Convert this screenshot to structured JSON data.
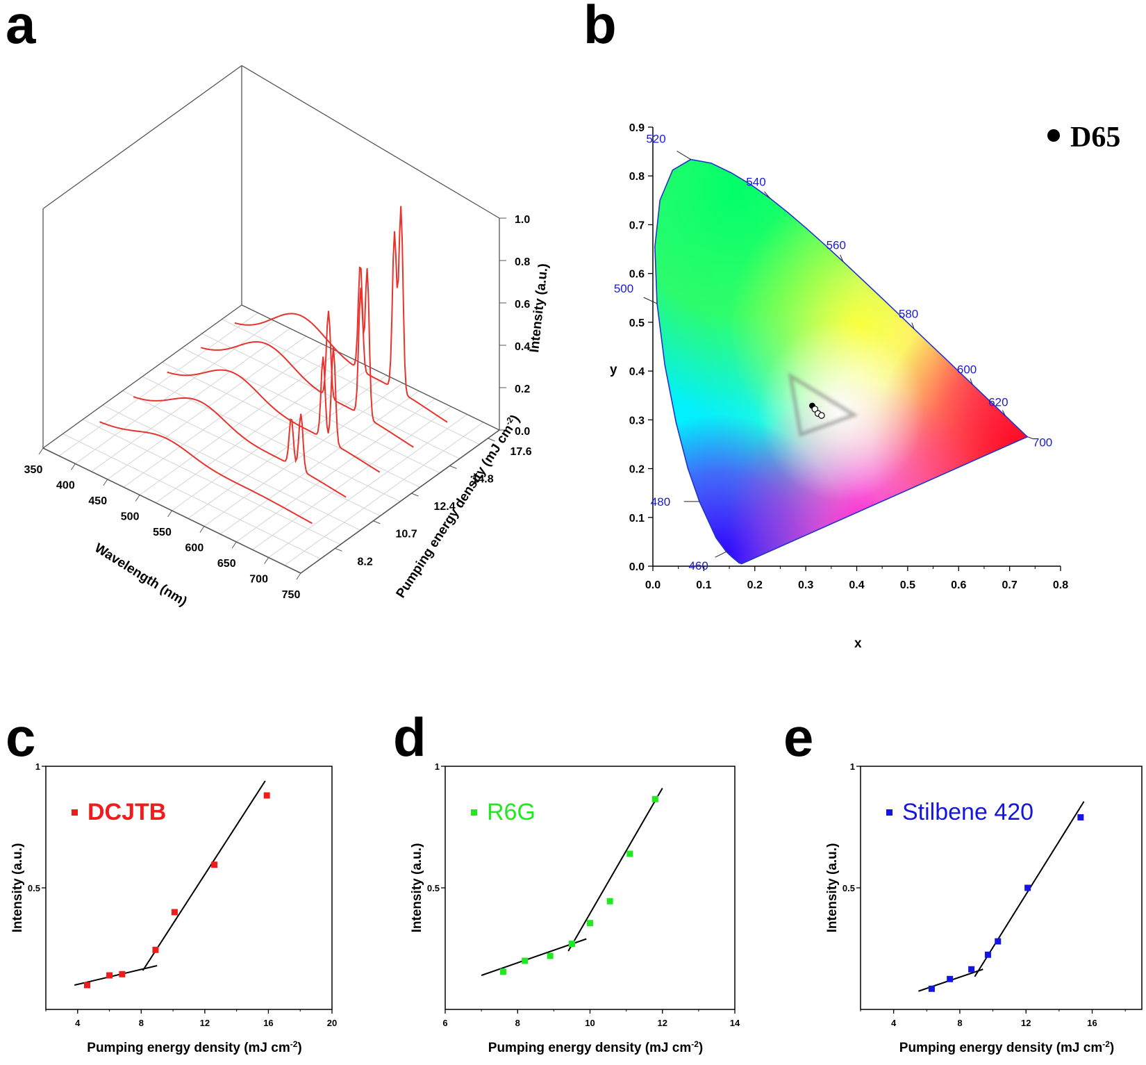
{
  "panels": {
    "a": "a",
    "b": "b",
    "c": "c",
    "d": "d",
    "e": "e"
  },
  "colors": {
    "spectrum": "#e8322b",
    "dcjtb": "#ee1c1c",
    "r6g": "#22e822",
    "stilbene": "#1515e0",
    "cie_label": "#1a1ad6",
    "cie_border": "#2233cc"
  },
  "chart_data": [
    {
      "id": "a",
      "type": "line",
      "subtype": "3d-waterfall",
      "xlabel": "Wavelength (nm)",
      "ylabel": "Pumping energy density (mJ cm-2)",
      "zlabel": "Intensity (a.u.)",
      "x_ticks": [
        "350",
        "400",
        "450",
        "500",
        "550",
        "600",
        "650",
        "700",
        "750"
      ],
      "y_ticks": [
        "8.2",
        "10.7",
        "12.4",
        "14.8",
        "17.6"
      ],
      "z_ticks": [
        "0.0",
        "0.2",
        "0.4",
        "0.6",
        "0.8",
        "1.0"
      ],
      "xlim": [
        350,
        750
      ],
      "zlim": [
        0,
        1
      ],
      "series": [
        {
          "pumping": 8.2,
          "peaks": [],
          "baseline": 0.08
        },
        {
          "pumping": 10.7,
          "peaks": [
            615,
            630
          ],
          "baseline": 0.14
        },
        {
          "pumping": 12.4,
          "peaks": [
            612,
            628
          ],
          "baseline": 0.16
        },
        {
          "pumping": 14.8,
          "peaks": [
            568,
            618,
            628
          ],
          "baseline": 0.18
        },
        {
          "pumping": 17.6,
          "peaks": [
            565,
            618,
            628
          ],
          "baseline": 0.2
        }
      ]
    },
    {
      "id": "b",
      "type": "scatter",
      "subtype": "cie1931",
      "xlabel": "x",
      "ylabel": "y",
      "xlim": [
        0.0,
        0.8
      ],
      "ylim": [
        0.0,
        0.9
      ],
      "x_ticks": [
        "0.0",
        "0.1",
        "0.2",
        "0.3",
        "0.4",
        "0.5",
        "0.6",
        "0.7",
        "0.8"
      ],
      "y_ticks": [
        "0.0",
        "0.1",
        "0.2",
        "0.3",
        "0.4",
        "0.5",
        "0.6",
        "0.7",
        "0.8",
        "0.9"
      ],
      "wavelength_labels": [
        "460",
        "480",
        "500",
        "520",
        "540",
        "560",
        "580",
        "600",
        "620",
        "700"
      ],
      "legend": "D65",
      "points": [
        {
          "x": 0.3127,
          "y": 0.329,
          "kind": "D65"
        },
        {
          "x": 0.318,
          "y": 0.322,
          "kind": "sample"
        },
        {
          "x": 0.324,
          "y": 0.313,
          "kind": "sample"
        },
        {
          "x": 0.331,
          "y": 0.309,
          "kind": "sample"
        }
      ]
    },
    {
      "id": "c",
      "type": "scatter",
      "legend": "DCJTB",
      "xlabel": "Pumping energy density (mJ cm-2)",
      "ylabel": "Intensity (a.u.)",
      "xlim": [
        2,
        20
      ],
      "ylim": [
        0,
        1
      ],
      "x_ticks": [
        "4",
        "8",
        "12",
        "16",
        "20"
      ],
      "y_ticks": [
        "0.5",
        "1"
      ],
      "x": [
        4.6,
        6.0,
        6.8,
        8.9,
        10.1,
        12.6,
        15.9
      ],
      "y": [
        0.1,
        0.14,
        0.145,
        0.245,
        0.4,
        0.595,
        0.88
      ],
      "fit_lines": [
        {
          "x": [
            3.8,
            9.0
          ],
          "y": [
            0.1,
            0.18
          ]
        },
        {
          "x": [
            8.1,
            15.8
          ],
          "y": [
            0.16,
            0.94
          ]
        }
      ]
    },
    {
      "id": "d",
      "type": "scatter",
      "legend": "R6G",
      "xlabel": "Pumping energy density (mJ cm-2)",
      "ylabel": "Intensity (a.u.)",
      "xlim": [
        6,
        14
      ],
      "ylim": [
        0,
        1
      ],
      "x_ticks": [
        "6",
        "8",
        "10",
        "12",
        "14"
      ],
      "y_ticks": [
        "0.5",
        "1"
      ],
      "x": [
        7.6,
        8.2,
        8.9,
        9.5,
        10.0,
        10.55,
        11.1,
        11.8
      ],
      "y": [
        0.155,
        0.2,
        0.22,
        0.27,
        0.355,
        0.445,
        0.64,
        0.865
      ],
      "fit_lines": [
        {
          "x": [
            7.0,
            9.9
          ],
          "y": [
            0.14,
            0.29
          ]
        },
        {
          "x": [
            9.4,
            12.0
          ],
          "y": [
            0.24,
            0.91
          ]
        }
      ]
    },
    {
      "id": "e",
      "type": "scatter",
      "legend": "Stilbene 420",
      "xlabel": "Pumping energy density (mJ cm-2)",
      "ylabel": "Intensity (a.u.)",
      "xlim": [
        2,
        19
      ],
      "ylim": [
        0,
        1
      ],
      "x_ticks": [
        "4",
        "8",
        "12",
        "16"
      ],
      "y_ticks": [
        "0.5",
        "1"
      ],
      "x": [
        6.3,
        7.4,
        8.7,
        9.7,
        10.3,
        12.1,
        15.3
      ],
      "y": [
        0.085,
        0.125,
        0.165,
        0.225,
        0.28,
        0.5,
        0.79
      ],
      "fit_lines": [
        {
          "x": [
            5.5,
            9.4
          ],
          "y": [
            0.075,
            0.165
          ]
        },
        {
          "x": [
            8.9,
            15.5
          ],
          "y": [
            0.135,
            0.855
          ]
        }
      ]
    }
  ]
}
